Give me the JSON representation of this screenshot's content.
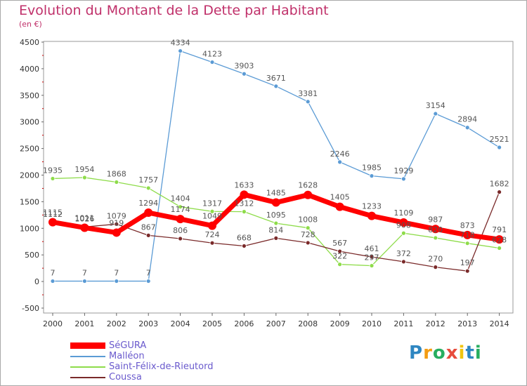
{
  "header": {
    "title": "Evolution du Montant de la Dette par Habitant",
    "unit": "(en €)"
  },
  "brand": {
    "name": "Proxiti"
  },
  "chart_data": {
    "type": "line",
    "title": "Evolution du Montant de la Dette par Habitant",
    "ylabel": "(en €)",
    "xlabel": "",
    "x": [
      "2000",
      "2001",
      "2002",
      "2003",
      "2004",
      "2005",
      "2006",
      "2007",
      "2008",
      "2009",
      "2010",
      "2011",
      "2012",
      "2013",
      "2014"
    ],
    "ylim": [
      -500,
      4500
    ],
    "yticks": [
      "-500",
      "0",
      "500",
      "1000",
      "1500",
      "2000",
      "2500",
      "3000",
      "3500",
      "4000",
      "4500"
    ],
    "legend_position": "bottom-left",
    "series": [
      {
        "name": "SéGURA",
        "color": "#ff0000",
        "values": [
          1115,
          1011,
          919,
          1294,
          1174,
          1049,
          1633,
          1485,
          1628,
          1405,
          1233,
          1109,
          987,
          873,
          791
        ],
        "labels": [
          "1115",
          "1011",
          "919",
          "1294",
          "1174",
          "1049",
          "1633",
          "1485",
          "1628",
          "1405",
          "1233",
          "1109",
          "987",
          "873",
          "791"
        ]
      },
      {
        "name": "Malléon",
        "color": "#5b9bd5",
        "values": [
          7,
          7,
          7,
          7,
          4334,
          4123,
          3903,
          3671,
          3381,
          2246,
          1985,
          1929,
          3154,
          2894,
          2521
        ],
        "labels": [
          "7",
          "7",
          "7",
          "7",
          "4334",
          "4123",
          "3903",
          "3671",
          "3381",
          "2246",
          "1985",
          "1929",
          "3154",
          "2894",
          "2521"
        ]
      },
      {
        "name": "Saint-Félix-de-Rieutord",
        "color": "#8edc4a",
        "values": [
          1935,
          1954,
          1868,
          1757,
          1404,
          1317,
          1312,
          1095,
          1008,
          322,
          297,
          908,
          820,
          718,
          628
        ],
        "labels": [
          "1935",
          "1954",
          "1868",
          "1757",
          "1404",
          "1317",
          "1312",
          "1095",
          "1008",
          "322",
          "297",
          "908",
          "820",
          "718",
          "628"
        ]
      },
      {
        "name": "Coussa",
        "color": "#7a2a2a",
        "values": [
          1112,
          1026,
          1079,
          867,
          806,
          724,
          668,
          814,
          728,
          567,
          461,
          372,
          270,
          197,
          1682
        ],
        "labels": [
          "1112",
          "1026",
          "1079",
          "867",
          "806",
          "724",
          "668",
          "814",
          "728",
          "567",
          "461",
          "372",
          "270",
          "197",
          "1682"
        ]
      }
    ]
  }
}
